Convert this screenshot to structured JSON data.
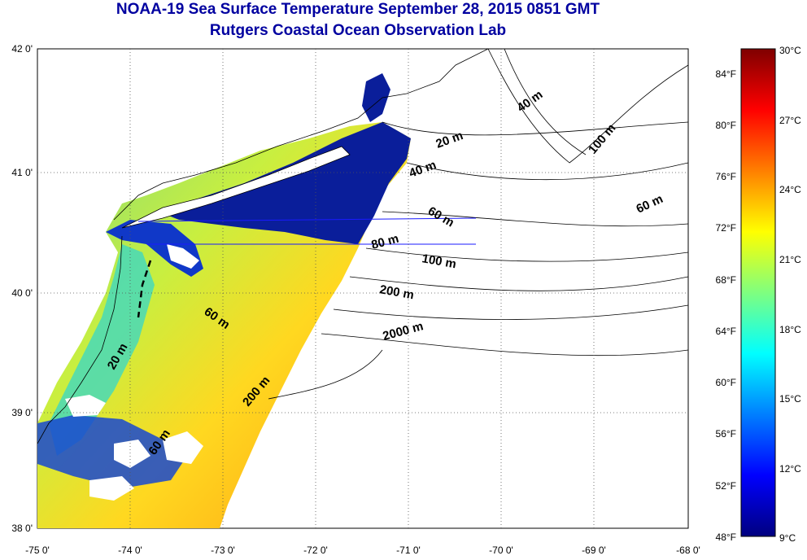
{
  "title": "NOAA-19 Sea Surface Temperature September 28, 2015 0851 GMT",
  "subtitle": "Rutgers Coastal Ocean Observation Lab",
  "map": {
    "lat_labels": [
      "42 0'",
      "41 0'",
      "40 0'",
      "39 0'",
      "38 0'"
    ],
    "lon_labels": [
      "-75 0'",
      "-74 0'",
      "-73 0'",
      "-72 0'",
      "-71 0'",
      "-70 0'",
      "-69 0'",
      "-68 0'"
    ],
    "extent": {
      "lon": [
        -75,
        -68
      ],
      "lat": [
        38,
        42
      ]
    },
    "depth_labels": [
      {
        "text": "20 m"
      },
      {
        "text": "40 m"
      },
      {
        "text": "40 m"
      },
      {
        "text": "60 m"
      },
      {
        "text": "80 m"
      },
      {
        "text": "100 m"
      },
      {
        "text": "100 m"
      },
      {
        "text": "60 m"
      },
      {
        "text": "200 m"
      },
      {
        "text": "2000 m"
      },
      {
        "text": "60 m"
      },
      {
        "text": "20 m"
      },
      {
        "text": "200 m"
      },
      {
        "text": "60 m"
      }
    ]
  },
  "colorbar": {
    "f_labels": [
      "84°F",
      "80°F",
      "76°F",
      "72°F",
      "68°F",
      "64°F",
      "60°F",
      "56°F",
      "52°F",
      "48°F"
    ],
    "c_labels": [
      "30°C",
      "27°C",
      "24°C",
      "21°C",
      "18°C",
      "15°C",
      "12°C",
      "9°C"
    ],
    "range_c": [
      9,
      30
    ],
    "colors": [
      "#00007f",
      "#0000ff",
      "#007fff",
      "#00ffff",
      "#7fff7f",
      "#ffff00",
      "#ff7f00",
      "#ff0000",
      "#7f0000"
    ]
  }
}
